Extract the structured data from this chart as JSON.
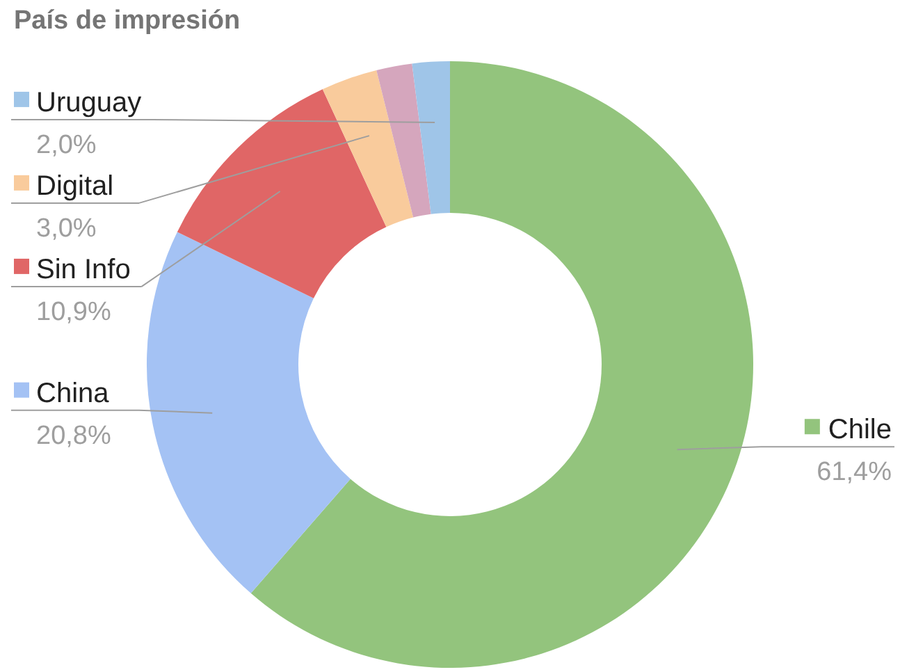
{
  "chart_data": {
    "type": "donut",
    "title": "País de impresión",
    "categories": [
      "Chile",
      "China",
      "Sin Info",
      "Digital",
      null,
      "Uruguay"
    ],
    "values": [
      61.4,
      20.8,
      10.9,
      3.0,
      1.9,
      2.0
    ],
    "value_labels": [
      "61,4%",
      "20,8%",
      "10,9%",
      "3,0%",
      null,
      "2,0%"
    ],
    "colors": [
      "#93c47d",
      "#a4c2f4",
      "#e06666",
      "#f9cb9c",
      "#d5a6bd",
      "#9fc5e8"
    ],
    "legend": "left"
  }
}
